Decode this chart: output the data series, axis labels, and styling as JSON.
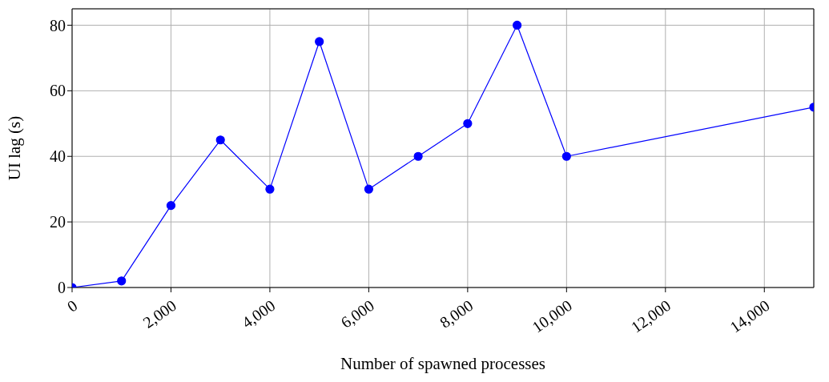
{
  "chart_data": {
    "type": "line",
    "xlabel": "Number of spawned processes",
    "ylabel": "UI lag (s)",
    "x": [
      0,
      1000,
      2000,
      3000,
      4000,
      5000,
      6000,
      7000,
      8000,
      9000,
      10000,
      15000
    ],
    "series": [
      {
        "color": "#0000ff",
        "values": [
          0,
          2,
          25,
          45,
          30,
          75,
          30,
          40,
          50,
          80,
          40,
          55
        ]
      }
    ],
    "xlim": [
      0,
      15000
    ],
    "xticks": [
      0,
      {
        "value": 2000,
        "label": "2,000"
      },
      {
        "value": 4000,
        "label": "4,000"
      },
      {
        "value": 6000,
        "label": "6,000"
      },
      {
        "value": 8000,
        "label": "8,000"
      },
      {
        "value": 10000,
        "label": "10,000"
      },
      {
        "value": 12000,
        "label": "12,000"
      },
      {
        "value": 14000,
        "label": "14,000"
      }
    ],
    "ylim": [
      0,
      85
    ],
    "yticks": [
      0,
      20,
      40,
      60,
      80
    ],
    "grid": true,
    "marker": "circle",
    "line_style": "solid",
    "legend": false
  }
}
